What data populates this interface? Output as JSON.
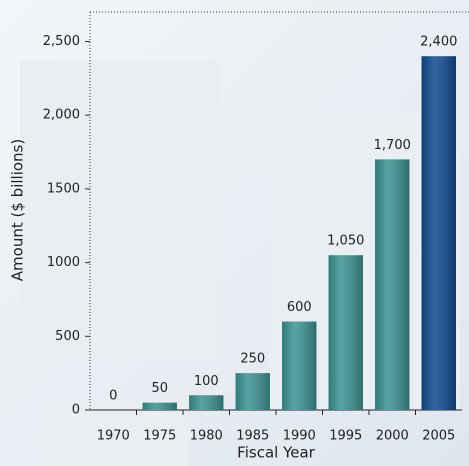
{
  "chart_data": {
    "type": "bar",
    "x_label": "Fiscal Year",
    "y_label": "Amount ($ billions)",
    "categories": [
      "1970",
      "1975",
      "1980",
      "1985",
      "1990",
      "1995",
      "2000",
      "2005"
    ],
    "values": [
      0,
      50,
      100,
      250,
      600,
      1050,
      1700,
      2400
    ],
    "value_labels": [
      "0",
      "50",
      "100",
      "250",
      "600",
      "1,050",
      "1,700",
      "2,400"
    ],
    "colors": [
      "#3b9191",
      "#3b9191",
      "#3b9191",
      "#3b9191",
      "#3b9191",
      "#3b9191",
      "#3b9191",
      "#0e4a8e"
    ],
    "ylim": [
      0,
      2700
    ],
    "yticks": [
      0,
      500,
      1000,
      1500,
      {
        "value": 2000,
        "label": "2,000"
      },
      {
        "value": 2500,
        "label": "2,500"
      }
    ]
  }
}
